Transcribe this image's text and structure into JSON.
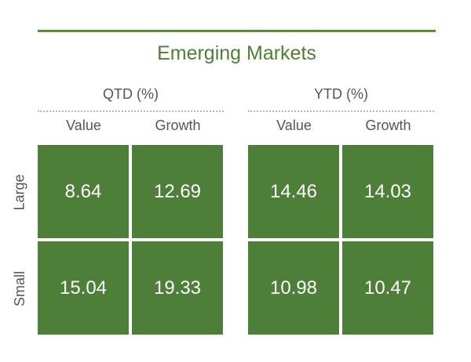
{
  "colors": {
    "accent": "#5b8a3e",
    "title": "#4f7f33",
    "cell_fill": "#4e7f38",
    "cell_text": "#ffffff",
    "label_text": "#555555"
  },
  "chart_data": {
    "type": "table",
    "title": "Emerging Markets",
    "row_labels": [
      "Large",
      "Small"
    ],
    "column_labels": [
      "Value",
      "Growth"
    ],
    "panels": [
      {
        "name": "QTD (%)",
        "values": [
          [
            8.64,
            12.69
          ],
          [
            15.04,
            19.33
          ]
        ]
      },
      {
        "name": "YTD (%)",
        "values": [
          [
            14.46,
            14.03
          ],
          [
            10.98,
            10.47
          ]
        ]
      }
    ]
  }
}
